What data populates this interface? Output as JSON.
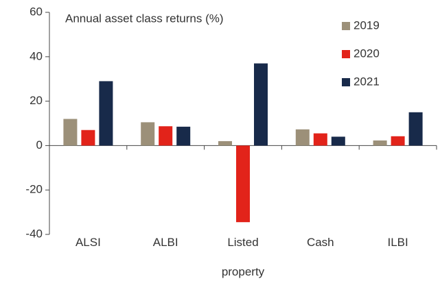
{
  "chart_data": {
    "type": "bar",
    "title": "Annual asset class returns (%)",
    "categories": [
      "ALSI",
      "ALBI",
      "Listed property",
      "Cash",
      "ILBI"
    ],
    "series": [
      {
        "name": "2019",
        "color": "#9c9079",
        "values": [
          12,
          10.5,
          2,
          7.3,
          2.3
        ]
      },
      {
        "name": "2020",
        "color": "#e2231a",
        "values": [
          7,
          8.7,
          -34.5,
          5.5,
          4.2
        ]
      },
      {
        "name": "2021",
        "color": "#182a4a",
        "values": [
          29,
          8.5,
          37,
          4,
          15
        ]
      }
    ],
    "ylim": [
      -40,
      60
    ],
    "yticks": [
      -40,
      -20,
      0,
      20,
      40,
      60
    ],
    "grid": false,
    "legend": "top-right"
  }
}
